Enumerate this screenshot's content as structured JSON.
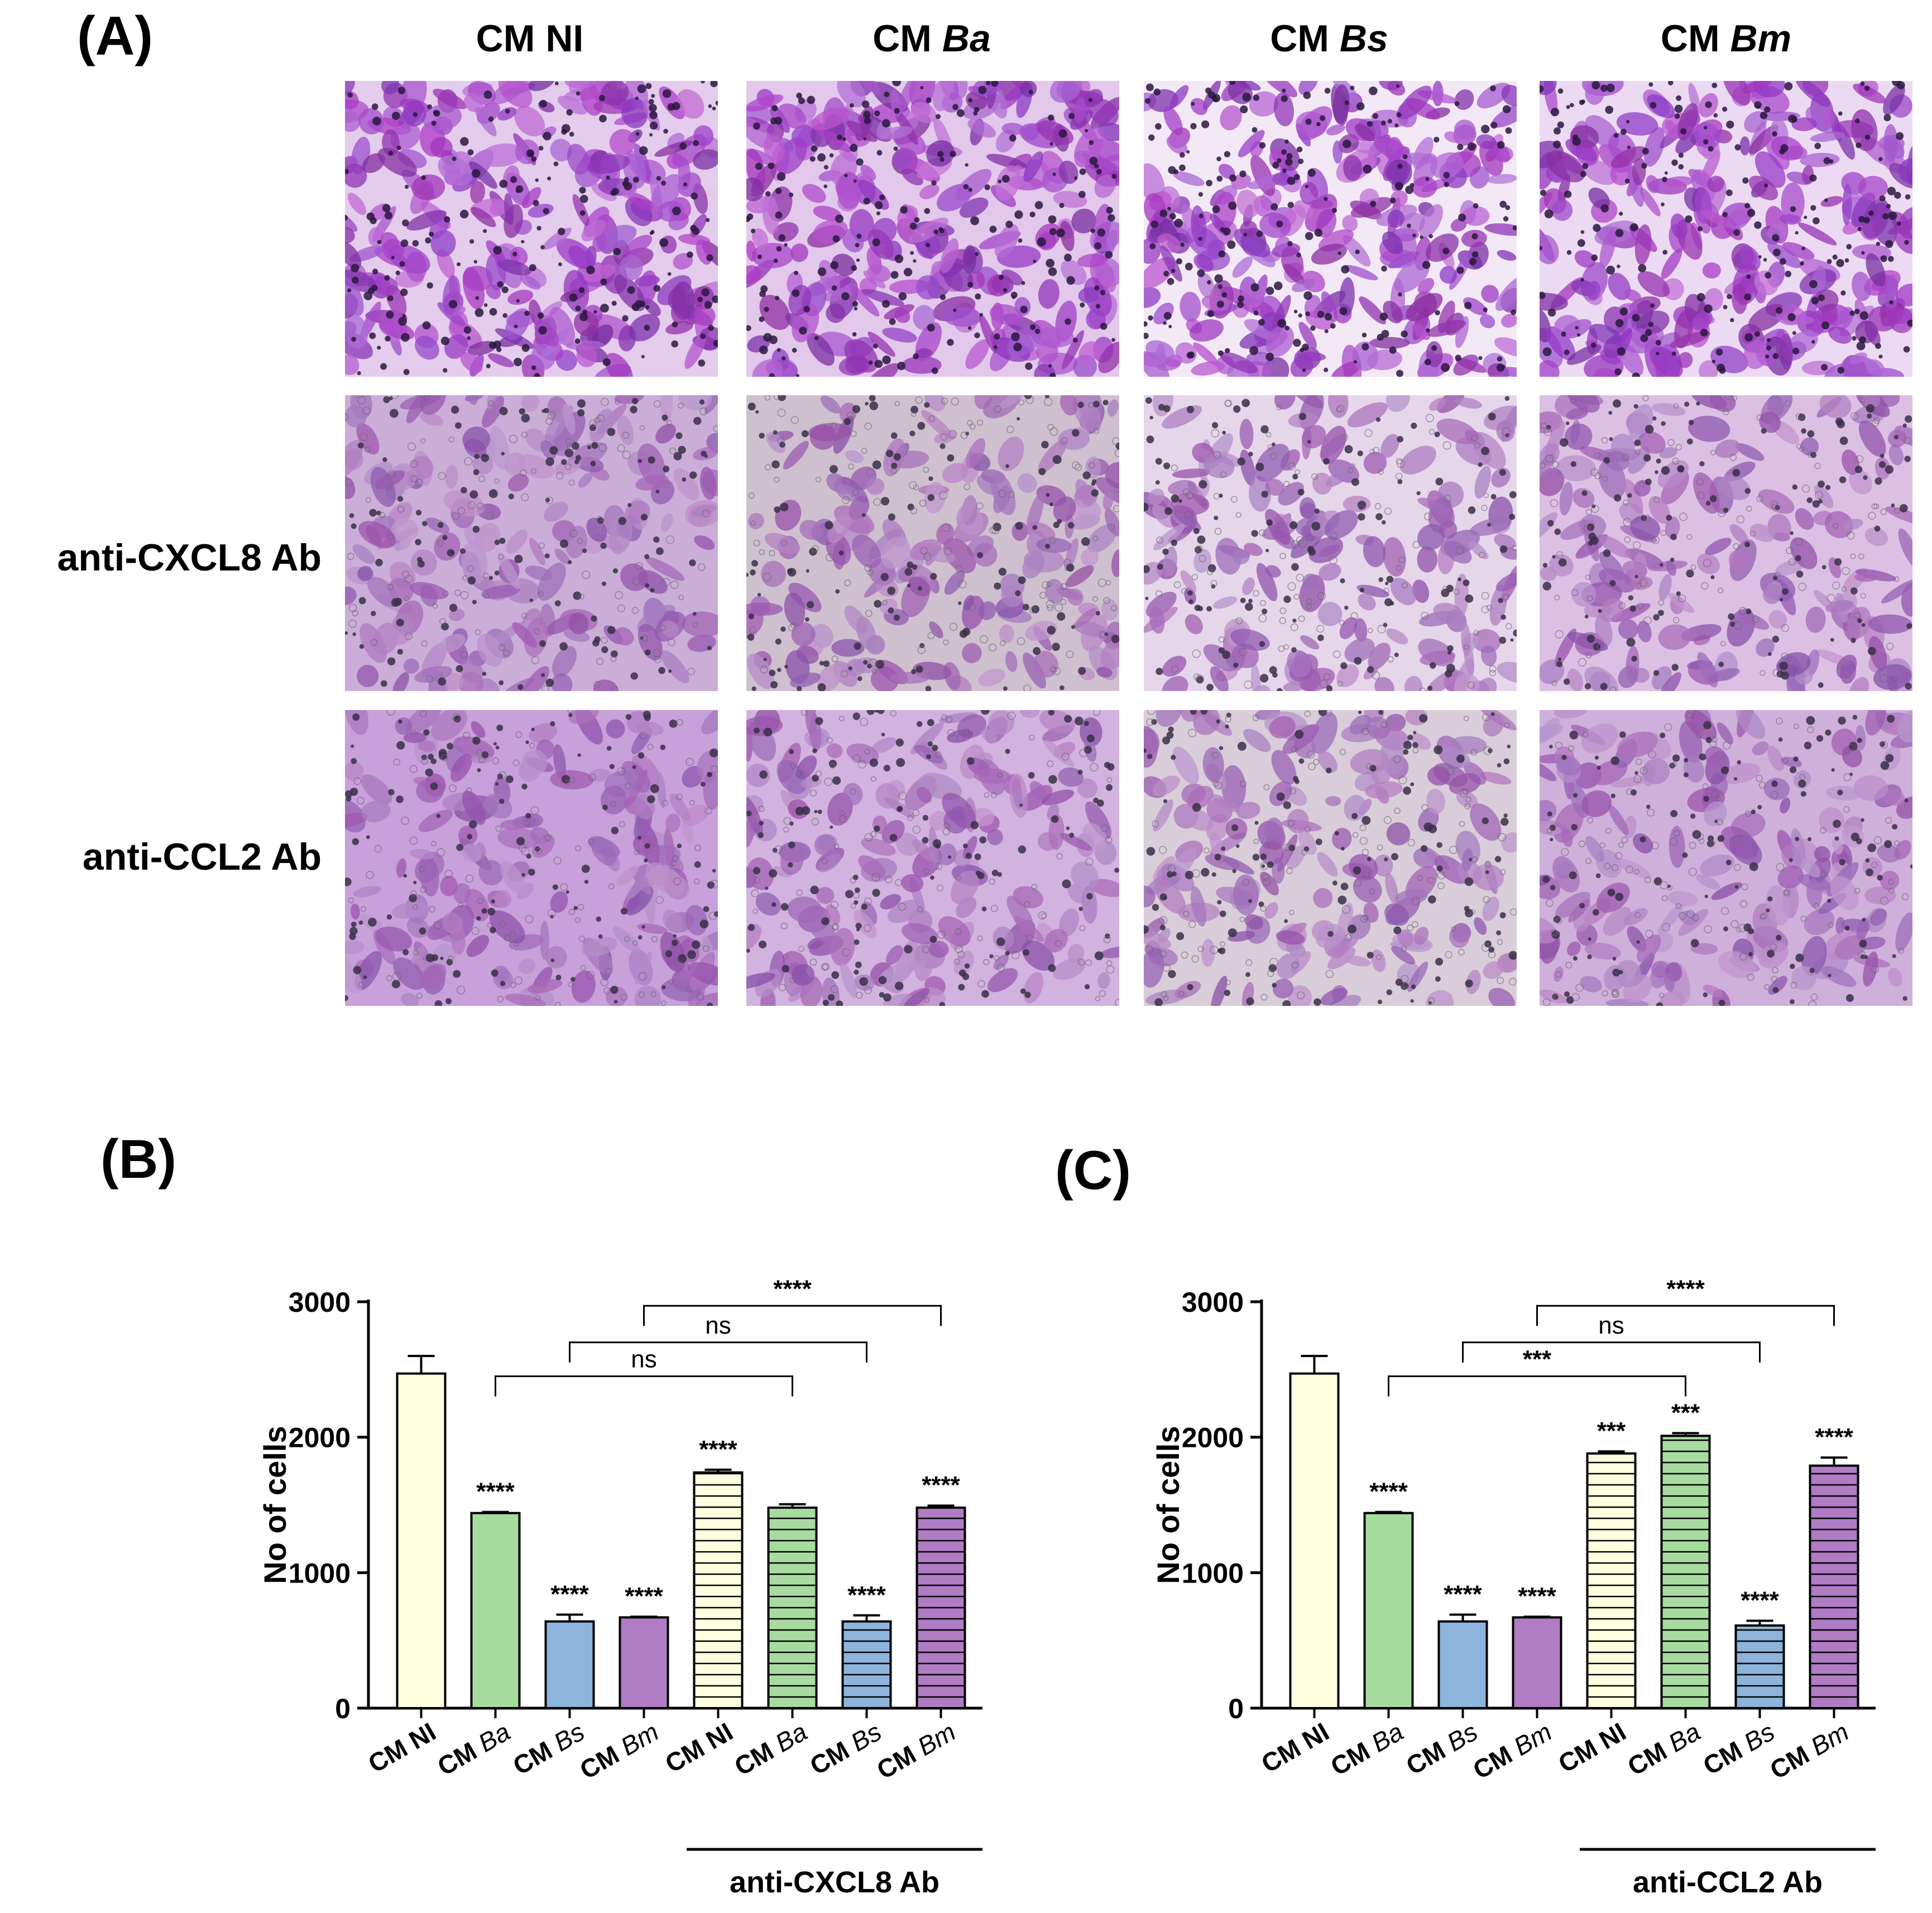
{
  "panels": {
    "a": "(A)",
    "b": "(B)",
    "c": "(C)"
  },
  "panel_a": {
    "columns": [
      {
        "prefix": "CM ",
        "name": "NI",
        "italic": false
      },
      {
        "prefix": "CM ",
        "name": "Ba",
        "italic": true
      },
      {
        "prefix": "CM ",
        "name": "Bs",
        "italic": true
      },
      {
        "prefix": "CM ",
        "name": "Bm",
        "italic": true
      }
    ],
    "rows": [
      "",
      "anti-CXCL8 Ab",
      "anti-CCL2 Ab"
    ],
    "micrograph_tones": [
      [
        "#e4ccec",
        "#e2c8ea",
        "#f3e9f6",
        "#ecdaf2"
      ],
      [
        "#cbaed8",
        "#cfc0cf",
        "#e6d6ea",
        "#dcc0e4"
      ],
      [
        "#c8a0da",
        "#d2b2de",
        "#d9cdd9",
        "#cfb0da"
      ]
    ]
  },
  "chart_data": [
    {
      "type": "bar",
      "panel": "(B)",
      "ylabel": "No of cells",
      "ylim": [
        0,
        3000
      ],
      "yticks": [
        0,
        1000,
        2000,
        3000
      ],
      "categories": [
        {
          "prefix": "CM ",
          "name": "NI",
          "italic": false
        },
        {
          "prefix": "CM ",
          "name": "Ba",
          "italic": true
        },
        {
          "prefix": "CM ",
          "name": "Bs",
          "italic": true
        },
        {
          "prefix": "CM ",
          "name": "Bm",
          "italic": true
        },
        {
          "prefix": "CM ",
          "name": "NI",
          "italic": false
        },
        {
          "prefix": "CM ",
          "name": "Ba",
          "italic": true
        },
        {
          "prefix": "CM ",
          "name": "Bs",
          "italic": true
        },
        {
          "prefix": "CM ",
          "name": "Bm",
          "italic": true
        }
      ],
      "values": [
        2470,
        1440,
        640,
        670,
        1740,
        1480,
        640,
        1480
      ],
      "errors": [
        130,
        8,
        50,
        5,
        20,
        25,
        45,
        15
      ],
      "colors": [
        "#ffffe0",
        "#a8dba0",
        "#8cb4dc",
        "#b07cc4",
        "#ffffe0",
        "#a8dba0",
        "#8cb4dc",
        "#b07cc4"
      ],
      "hatched": [
        false,
        false,
        false,
        false,
        true,
        true,
        true,
        true
      ],
      "significance": [
        "",
        "****",
        "****",
        "****",
        "****",
        "",
        "****",
        "****"
      ],
      "brackets": [
        {
          "from": 1,
          "to": 5,
          "label": "ns"
        },
        {
          "from": 2,
          "to": 6,
          "label": "ns"
        },
        {
          "from": 3,
          "to": 7,
          "label": "****"
        }
      ],
      "group_label": {
        "text": "anti-CXCL8 Ab",
        "from": 4,
        "to": 7
      }
    },
    {
      "type": "bar",
      "panel": "(C)",
      "ylabel": "No of cells",
      "ylim": [
        0,
        3000
      ],
      "yticks": [
        0,
        1000,
        2000,
        3000
      ],
      "categories": [
        {
          "prefix": "CM ",
          "name": "NI",
          "italic": false
        },
        {
          "prefix": "CM ",
          "name": "Ba",
          "italic": true
        },
        {
          "prefix": "CM ",
          "name": "Bs",
          "italic": true
        },
        {
          "prefix": "CM ",
          "name": "Bm",
          "italic": true
        },
        {
          "prefix": "CM ",
          "name": "NI",
          "italic": false
        },
        {
          "prefix": "CM ",
          "name": "Ba",
          "italic": true
        },
        {
          "prefix": "CM ",
          "name": "Bs",
          "italic": true
        },
        {
          "prefix": "CM ",
          "name": "Bm",
          "italic": true
        }
      ],
      "values": [
        2470,
        1440,
        640,
        670,
        1880,
        2010,
        610,
        1790
      ],
      "errors": [
        130,
        8,
        50,
        5,
        15,
        20,
        35,
        60
      ],
      "colors": [
        "#ffffe0",
        "#a8dba0",
        "#8cb4dc",
        "#b07cc4",
        "#ffffe0",
        "#a8dba0",
        "#8cb4dc",
        "#b07cc4"
      ],
      "hatched": [
        false,
        false,
        false,
        false,
        true,
        true,
        true,
        true
      ],
      "significance": [
        "",
        "****",
        "****",
        "****",
        "***",
        "***",
        "****",
        "****"
      ],
      "brackets": [
        {
          "from": 1,
          "to": 5,
          "label": "***"
        },
        {
          "from": 2,
          "to": 6,
          "label": "ns"
        },
        {
          "from": 3,
          "to": 7,
          "label": "****"
        }
      ],
      "group_label": {
        "text": "anti-CCL2 Ab",
        "from": 4,
        "to": 7
      }
    }
  ]
}
